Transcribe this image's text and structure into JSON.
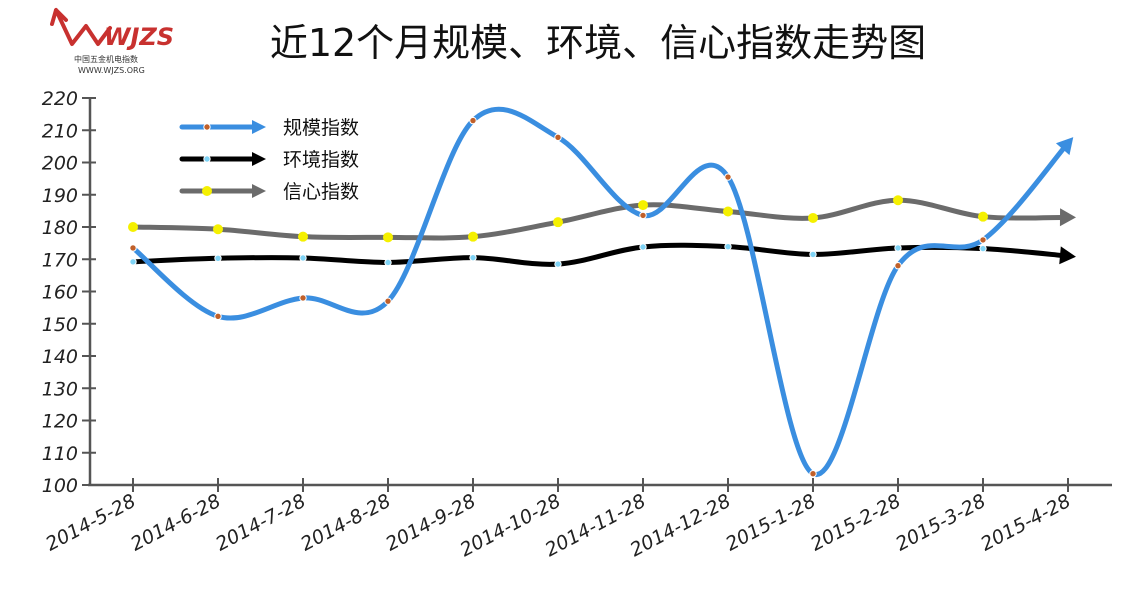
{
  "logo": {
    "brand": "WJZS",
    "tagline": "中国五金机电指数",
    "url": "WWW.WJZS.ORG",
    "color": "#c8312f"
  },
  "chart_data": {
    "type": "line",
    "title": "近12个月规模、环境、信心指数走势图",
    "categories": [
      "2014-5-28",
      "2014-6-28",
      "2014-7-28",
      "2014-8-28",
      "2014-9-28",
      "2014-10-28",
      "2014-11-28",
      "2014-12-28",
      "2015-1-28",
      "2015-2-28",
      "2015-3-28",
      "2015-4-28"
    ],
    "ylim": [
      100,
      220
    ],
    "yticks": [
      100,
      110,
      120,
      130,
      140,
      150,
      160,
      170,
      180,
      190,
      200,
      210,
      220
    ],
    "xlabel": "",
    "ylabel": "",
    "grid": false,
    "legend_position": "top-left",
    "series": [
      {
        "name": "规模指数",
        "color": "#3a8ee0",
        "marker_color": "#c0602a",
        "values": [
          173.5,
          152.3,
          158,
          157,
          213,
          207.8,
          183.6,
          195.5,
          103.5,
          168,
          176,
          206
        ]
      },
      {
        "name": "环境指数",
        "color": "#000000",
        "marker_color": "#7fd3f5",
        "values": [
          169.2,
          170.3,
          170.4,
          169,
          170.5,
          168.5,
          173.8,
          173.9,
          171.5,
          173.5,
          173.3,
          171
        ]
      },
      {
        "name": "信心指数",
        "color": "#6b6b6b",
        "marker_color": "#f5f000",
        "values": [
          180,
          179.3,
          177,
          176.8,
          177,
          181.5,
          186.8,
          184.8,
          182.8,
          188.3,
          183.2,
          183
        ]
      }
    ]
  }
}
